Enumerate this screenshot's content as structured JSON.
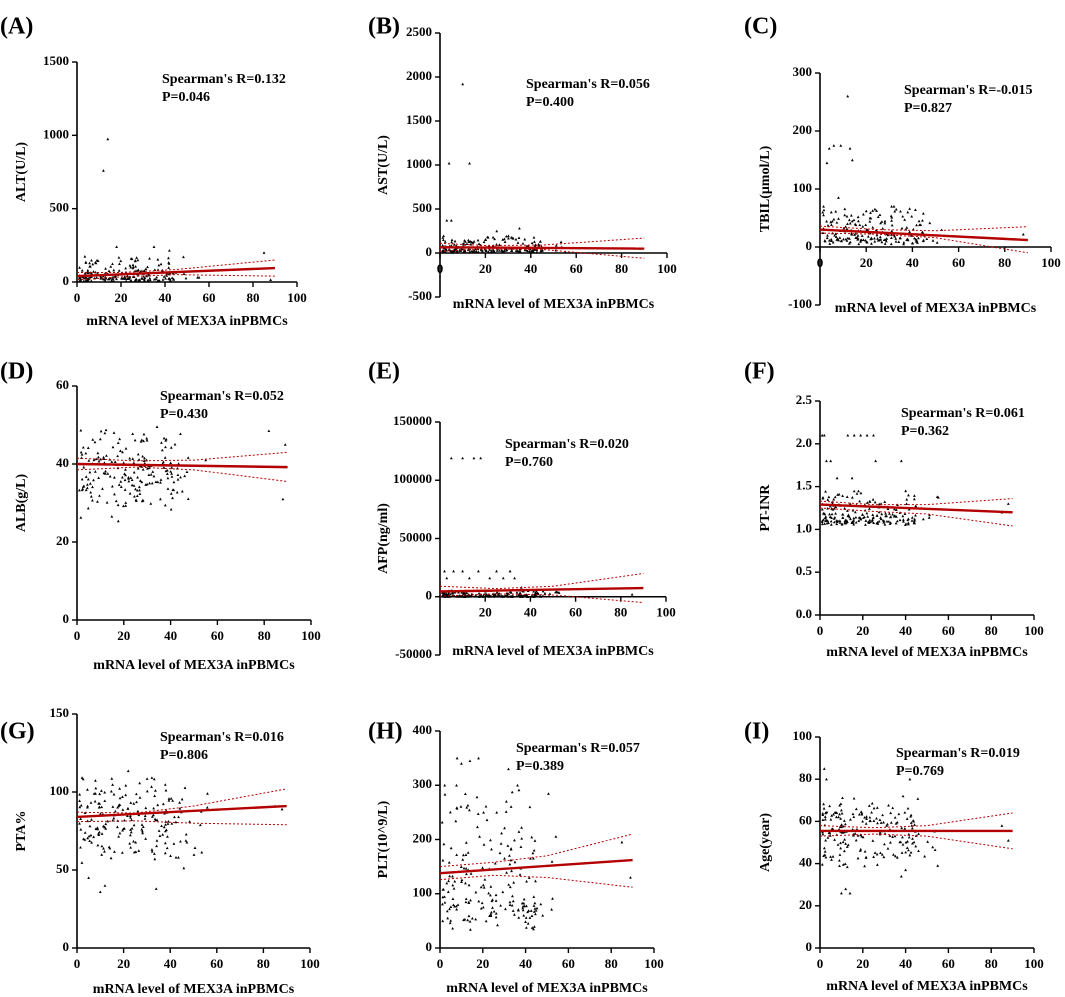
{
  "figure": {
    "background": "#ffffff",
    "fit_color": "#b30000",
    "point_color": "#000000"
  },
  "chart_data": [
    {
      "type": "scatter",
      "panel_label": "(A)",
      "ylabel": "ALT(U/L)",
      "xlabel": "mRNA level of MEX3A inPBMCs",
      "xlim": [
        0,
        100
      ],
      "ylim": [
        0,
        1500
      ],
      "xticks": [
        0,
        20,
        40,
        60,
        80,
        100
      ],
      "yticks": [
        0,
        500,
        1000,
        1500
      ],
      "annotation": [
        "Spearman's R=0.132",
        "P=0.046"
      ],
      "fit": {
        "x": [
          0,
          90
        ],
        "y": [
          40,
          95
        ]
      },
      "ci_upper": [
        [
          0,
          65
        ],
        [
          20,
          65
        ],
        [
          45,
          85
        ],
        [
          90,
          150
        ]
      ],
      "ci_lower": [
        [
          0,
          15
        ],
        [
          20,
          35
        ],
        [
          45,
          50
        ],
        [
          90,
          40
        ]
      ],
      "seed": 11,
      "n": 190,
      "y_base": {
        "type": "skew",
        "min": 5,
        "mode": 40,
        "max": 180
      },
      "outliers": [
        [
          12,
          760
        ],
        [
          14,
          975
        ],
        [
          18,
          240
        ],
        [
          35,
          240
        ],
        [
          42,
          215
        ],
        [
          85,
          200
        ],
        [
          88,
          15
        ]
      ]
    },
    {
      "type": "scatter",
      "panel_label": "(B)",
      "ylabel": "AST(U/L)",
      "xlabel": "mRNA level of MEX3A inPBMCs",
      "xlim": [
        0,
        100
      ],
      "ylim": [
        -500,
        2500
      ],
      "xticks": [
        0,
        20,
        40,
        60,
        80,
        100
      ],
      "yticks": [
        -500,
        0,
        500,
        1000,
        1500,
        2000,
        2500
      ],
      "annotation": [
        "Spearman's R=0.056",
        "P=0.400"
      ],
      "fit": {
        "x": [
          0,
          90
        ],
        "y": [
          65,
          50
        ]
      },
      "ci_upper": [
        [
          0,
          110
        ],
        [
          20,
          85
        ],
        [
          45,
          90
        ],
        [
          90,
          170
        ]
      ],
      "ci_lower": [
        [
          0,
          20
        ],
        [
          20,
          45
        ],
        [
          45,
          40
        ],
        [
          90,
          -60
        ]
      ],
      "seed": 23,
      "n": 190,
      "y_base": {
        "type": "skew",
        "min": 5,
        "mode": 45,
        "max": 200
      },
      "outliers": [
        [
          4,
          1020
        ],
        [
          10,
          1920
        ],
        [
          13,
          1020
        ],
        [
          3,
          370
        ],
        [
          5,
          370
        ],
        [
          35,
          280
        ],
        [
          25,
          250
        ],
        [
          88,
          50
        ]
      ]
    },
    {
      "type": "scatter",
      "panel_label": "(C)",
      "ylabel": "TBIL(μmol/L)",
      "xlabel": "mRNA level of MEX3A inPBMCs",
      "xlim": [
        0,
        100
      ],
      "ylim": [
        -100,
        300
      ],
      "xticks": [
        0,
        20,
        40,
        60,
        80,
        100
      ],
      "yticks": [
        -100,
        0,
        100,
        200,
        300
      ],
      "annotation": [
        "Spearman's R=-0.015",
        "P=0.827"
      ],
      "fit": {
        "x": [
          0,
          90
        ],
        "y": [
          30,
          12
        ]
      },
      "ci_upper": [
        [
          0,
          36
        ],
        [
          25,
          30
        ],
        [
          50,
          28
        ],
        [
          90,
          35
        ]
      ],
      "ci_lower": [
        [
          0,
          24
        ],
        [
          25,
          22
        ],
        [
          50,
          16
        ],
        [
          90,
          -10
        ]
      ],
      "seed": 37,
      "n": 190,
      "y_base": {
        "type": "skew",
        "min": 5,
        "mode": 20,
        "max": 70
      },
      "outliers": [
        [
          3,
          145
        ],
        [
          4,
          170
        ],
        [
          6,
          175
        ],
        [
          9,
          175
        ],
        [
          12,
          260
        ],
        [
          13,
          170
        ],
        [
          14,
          150
        ],
        [
          8,
          85
        ],
        [
          20,
          62
        ],
        [
          33,
          65
        ],
        [
          38,
          60
        ],
        [
          88,
          22
        ]
      ]
    },
    {
      "type": "scatter",
      "panel_label": "(D)",
      "ylabel": "ALB(g/L)",
      "xlabel": "mRNA level of MEX3A inPBMCs",
      "xlim": [
        0,
        100
      ],
      "ylim": [
        0,
        60
      ],
      "xticks": [
        0,
        20,
        40,
        60,
        80,
        100
      ],
      "yticks": [
        0,
        20,
        40,
        60
      ],
      "annotation": [
        "Spearman's R=0.052",
        "P=0.430"
      ],
      "fit": {
        "x": [
          0,
          90
        ],
        "y": [
          40,
          39.2
        ]
      },
      "ci_upper": [
        [
          0,
          41.5
        ],
        [
          25,
          40.8
        ],
        [
          50,
          41
        ],
        [
          90,
          43
        ]
      ],
      "ci_lower": [
        [
          0,
          38.5
        ],
        [
          25,
          39.2
        ],
        [
          50,
          38.5
        ],
        [
          90,
          35.5
        ]
      ],
      "seed": 41,
      "n": 200,
      "y_base": {
        "type": "uniform",
        "min": 25,
        "max": 50
      },
      "outliers": [
        [
          82,
          48.5
        ],
        [
          88,
          31
        ],
        [
          89,
          45
        ],
        [
          55,
          41
        ],
        [
          45,
          33
        ],
        [
          47,
          38
        ]
      ]
    },
    {
      "type": "scatter",
      "panel_label": "(E)",
      "ylabel": "AFP(ng/ml)",
      "xlabel": "mRNA level of MEX3A inPBMCs",
      "xlim": [
        0,
        100
      ],
      "ylim": [
        -50000,
        150000
      ],
      "xticks": [
        20,
        40,
        60,
        80,
        100
      ],
      "yticks": [
        -50000,
        0,
        50000,
        100000,
        150000
      ],
      "annotation": [
        "Spearman's R=0.020",
        "P=0.760"
      ],
      "fit": {
        "x": [
          0,
          90
        ],
        "y": [
          4500,
          7500
        ]
      },
      "ci_upper": [
        [
          0,
          9000
        ],
        [
          25,
          7000
        ],
        [
          50,
          9000
        ],
        [
          90,
          20000
        ]
      ],
      "ci_lower": [
        [
          0,
          500
        ],
        [
          25,
          2500
        ],
        [
          50,
          1500
        ],
        [
          90,
          -5000
        ]
      ],
      "seed": 53,
      "n": 200,
      "y_base": {
        "type": "skew",
        "min": 0,
        "mode": 500,
        "max": 6000
      },
      "outliers": [
        [
          5,
          119000
        ],
        [
          10,
          119000
        ],
        [
          15,
          119000
        ],
        [
          18,
          119000
        ],
        [
          3,
          16000
        ],
        [
          6,
          22000
        ],
        [
          10,
          22000
        ],
        [
          13,
          16000
        ],
        [
          17,
          22000
        ],
        [
          22,
          16000
        ],
        [
          25,
          22000
        ],
        [
          28,
          16000
        ],
        [
          31,
          22000
        ],
        [
          33,
          16000
        ],
        [
          2,
          22000
        ],
        [
          36,
          8000
        ],
        [
          85,
          2000
        ]
      ]
    },
    {
      "type": "scatter",
      "panel_label": "(F)",
      "ylabel": "PT-INR",
      "xlabel": "mRNA level of MEX3A inPBMCs",
      "xlim": [
        0,
        100
      ],
      "ylim": [
        0,
        2.5
      ],
      "xticks": [
        0,
        20,
        40,
        60,
        80,
        100
      ],
      "yticks": [
        0.0,
        0.5,
        1.0,
        1.5,
        2.0,
        2.5
      ],
      "annotation": [
        "Spearman's R=0.061",
        "P=0.362"
      ],
      "fit": {
        "x": [
          0,
          90
        ],
        "y": [
          1.29,
          1.2
        ]
      },
      "ci_upper": [
        [
          0,
          1.33
        ],
        [
          25,
          1.29
        ],
        [
          50,
          1.29
        ],
        [
          90,
          1.36
        ]
      ],
      "ci_lower": [
        [
          0,
          1.25
        ],
        [
          25,
          1.21
        ],
        [
          50,
          1.18
        ],
        [
          90,
          1.04
        ]
      ],
      "seed": 67,
      "n": 200,
      "y_base": {
        "type": "skew",
        "min": 1.05,
        "mode": 1.15,
        "max": 1.45
      },
      "outliers": [
        [
          1,
          2.1
        ],
        [
          2,
          2.1
        ],
        [
          13,
          2.1
        ],
        [
          16,
          2.1
        ],
        [
          19,
          2.1
        ],
        [
          22,
          2.1
        ],
        [
          25,
          2.1
        ],
        [
          3,
          1.8
        ],
        [
          5,
          1.8
        ],
        [
          26,
          1.8
        ],
        [
          38,
          1.8
        ],
        [
          15,
          1.6
        ],
        [
          8,
          1.6
        ],
        [
          85,
          1.2
        ],
        [
          88,
          1.3
        ]
      ]
    },
    {
      "type": "scatter",
      "panel_label": "(G)",
      "ylabel": "PTA%",
      "xlabel": "mRNA level of MEX3A inPBMCs",
      "xlim": [
        0,
        100
      ],
      "ylim": [
        0,
        150
      ],
      "xticks": [
        0,
        20,
        40,
        60,
        80,
        100
      ],
      "yticks": [
        0,
        50,
        100,
        150
      ],
      "annotation": [
        "Spearman's R=0.016",
        "P=0.806"
      ],
      "fit": {
        "x": [
          0,
          90
        ],
        "y": [
          84,
          91
        ]
      },
      "ci_upper": [
        [
          0,
          87
        ],
        [
          25,
          86.5
        ],
        [
          50,
          91
        ],
        [
          90,
          102
        ]
      ],
      "ci_lower": [
        [
          0,
          81
        ],
        [
          25,
          81.5
        ],
        [
          50,
          80
        ],
        [
          90,
          79
        ]
      ],
      "seed": 79,
      "n": 200,
      "y_base": {
        "type": "uniform",
        "min": 50,
        "max": 115
      },
      "outliers": [
        [
          5,
          45
        ],
        [
          10,
          36
        ],
        [
          12,
          40
        ],
        [
          34,
          38
        ],
        [
          56,
          99
        ],
        [
          85,
          91
        ],
        [
          88,
          89
        ]
      ]
    },
    {
      "type": "scatter",
      "panel_label": "(H)",
      "ylabel": "PLT(10^9/L)",
      "xlabel": "mRNA level of MEX3A inPBMCs",
      "xlim": [
        0,
        100
      ],
      "ylim": [
        0,
        400
      ],
      "xticks": [
        0,
        20,
        40,
        60,
        80,
        100
      ],
      "yticks": [
        0,
        100,
        200,
        300,
        400
      ],
      "annotation": [
        "Spearman's R=0.057",
        "P=0.389"
      ],
      "fit": {
        "x": [
          0,
          90
        ],
        "y": [
          138,
          162
        ]
      },
      "ci_upper": [
        [
          0,
          150
        ],
        [
          25,
          158
        ],
        [
          50,
          170
        ],
        [
          90,
          210
        ]
      ],
      "ci_lower": [
        [
          0,
          126
        ],
        [
          25,
          134
        ],
        [
          50,
          130
        ],
        [
          90,
          112
        ]
      ],
      "seed": 83,
      "n": 200,
      "y_base": {
        "type": "skew",
        "min": 30,
        "mode": 120,
        "max": 300
      },
      "outliers": [
        [
          8,
          350
        ],
        [
          10,
          340
        ],
        [
          14,
          345
        ],
        [
          18,
          350
        ],
        [
          32,
          330
        ],
        [
          42,
          260
        ],
        [
          44,
          180
        ],
        [
          48,
          60
        ],
        [
          85,
          195
        ],
        [
          89,
          130
        ]
      ]
    },
    {
      "type": "scatter",
      "panel_label": "(I)",
      "ylabel": "Age(year)",
      "xlabel": "mRNA level of MEX3A inPBMCs",
      "xlim": [
        0,
        100
      ],
      "ylim": [
        0,
        100
      ],
      "xticks": [
        0,
        20,
        40,
        60,
        80,
        100
      ],
      "yticks": [
        0,
        20,
        40,
        60,
        80,
        100
      ],
      "annotation": [
        "Spearman's R=0.019",
        "P=0.769"
      ],
      "fit": {
        "x": [
          0,
          90
        ],
        "y": [
          55.5,
          55.5
        ]
      },
      "ci_upper": [
        [
          0,
          58
        ],
        [
          25,
          57
        ],
        [
          50,
          58
        ],
        [
          90,
          64
        ]
      ],
      "ci_lower": [
        [
          0,
          53
        ],
        [
          25,
          54
        ],
        [
          50,
          53
        ],
        [
          90,
          47
        ]
      ],
      "seed": 97,
      "n": 200,
      "y_base": {
        "type": "uniform",
        "min": 36,
        "max": 74
      },
      "outliers": [
        [
          2,
          85
        ],
        [
          3,
          80
        ],
        [
          10,
          26
        ],
        [
          12,
          28
        ],
        [
          14,
          26
        ],
        [
          42,
          80
        ],
        [
          38,
          34
        ],
        [
          40,
          37
        ],
        [
          55,
          39
        ],
        [
          85,
          58
        ],
        [
          88,
          51
        ]
      ]
    }
  ]
}
